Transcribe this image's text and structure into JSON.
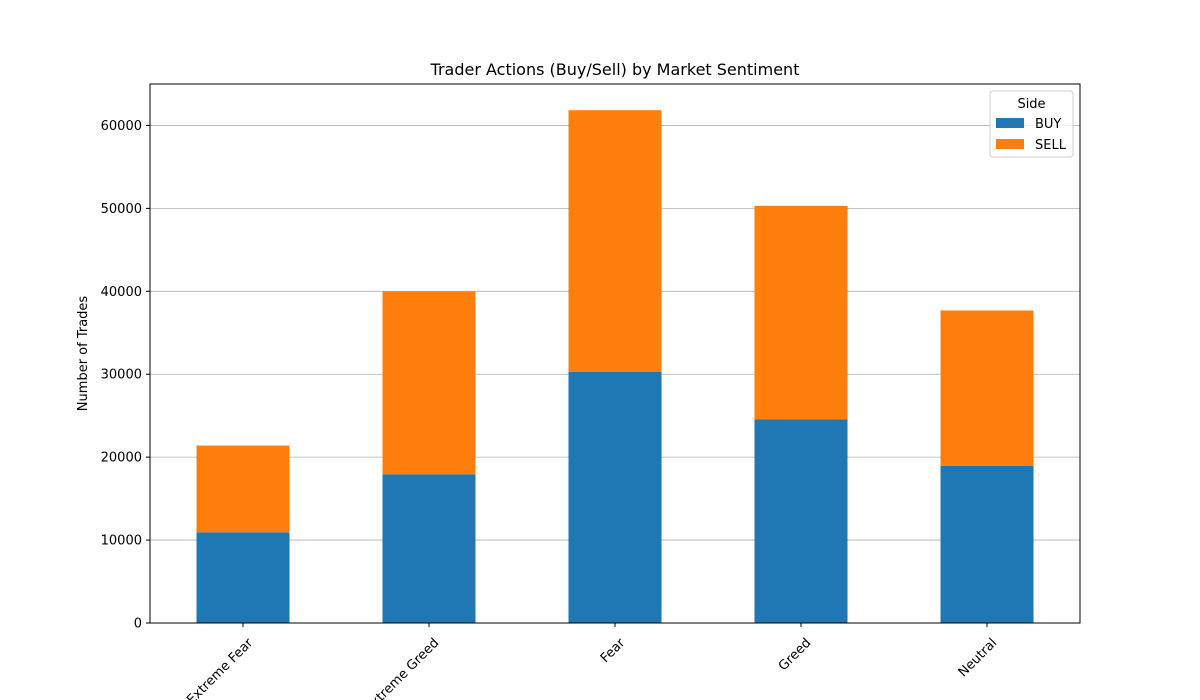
{
  "chart_data": {
    "type": "bar",
    "stacked": true,
    "title": "Trader Actions (Buy/Sell) by Market Sentiment",
    "xlabel": "",
    "ylabel": "Number of Trades",
    "categories": [
      "Extreme Fear",
      "Extreme Greed",
      "Fear",
      "Greed",
      "Neutral"
    ],
    "series": [
      {
        "name": "BUY",
        "values": [
          10935,
          17940,
          30270,
          24575,
          18969
        ],
        "color": "#1f77b4"
      },
      {
        "name": "SELL",
        "values": [
          10465,
          22052,
          31568,
          25735,
          18718
        ],
        "color": "#ff7f0e"
      }
    ],
    "ylim": [
      0,
      65000
    ],
    "yticks": [
      0,
      10000,
      20000,
      30000,
      40000,
      50000,
      60000
    ],
    "grid": "y",
    "legend": {
      "title": "Side",
      "position": "top-right"
    }
  }
}
